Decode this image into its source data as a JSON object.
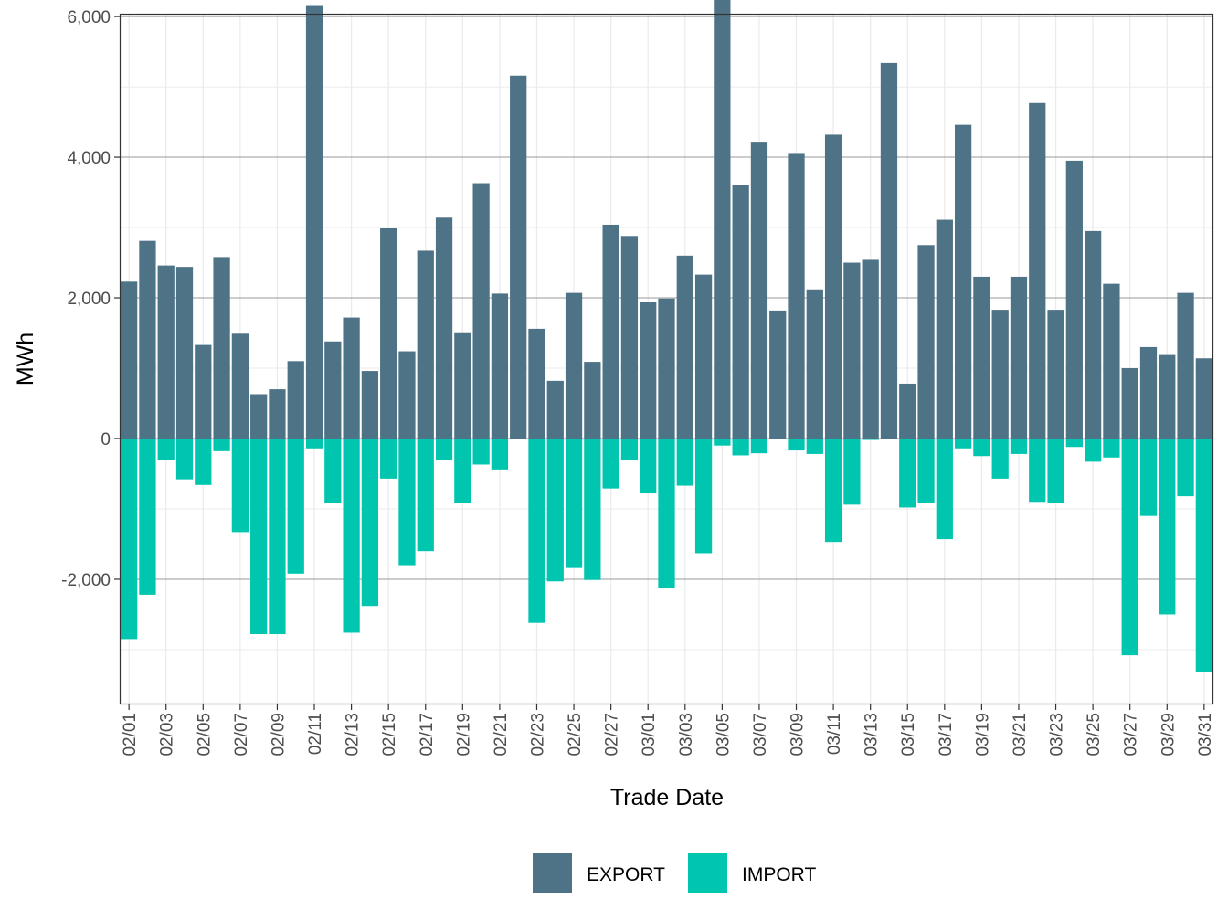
{
  "chart_data": {
    "type": "bar",
    "stacked": "diverging",
    "title": "",
    "xlabel": "Trade Date",
    "ylabel": "MWh",
    "ylim": [
      -3780,
      6040
    ],
    "y_ticks": [
      -2000,
      0,
      2000,
      4000,
      6000
    ],
    "y_tick_labels": [
      "-2,000",
      "0",
      "2,000",
      "4,000",
      "6,000"
    ],
    "grid": true,
    "legend_position": "bottom",
    "categories": [
      "02/01",
      "02/02",
      "02/03",
      "02/04",
      "02/05",
      "02/06",
      "02/07",
      "02/08",
      "02/09",
      "02/10",
      "02/11",
      "02/12",
      "02/13",
      "02/14",
      "02/15",
      "02/16",
      "02/17",
      "02/18",
      "02/19",
      "02/20",
      "02/21",
      "02/22",
      "02/23",
      "02/24",
      "02/25",
      "02/26",
      "02/27",
      "02/28",
      "03/01",
      "03/02",
      "03/03",
      "03/04",
      "03/05",
      "03/06",
      "03/07",
      "03/08",
      "03/09",
      "03/10",
      "03/11",
      "03/12",
      "03/13",
      "03/14",
      "03/15",
      "03/16",
      "03/17",
      "03/18",
      "03/19",
      "03/20",
      "03/21",
      "03/22",
      "03/23",
      "03/24",
      "03/25",
      "03/26",
      "03/27",
      "03/28",
      "03/29",
      "03/30",
      "03/31"
    ],
    "x_tick_labels": [
      "02/01",
      "02/03",
      "02/05",
      "02/07",
      "02/09",
      "02/11",
      "02/13",
      "02/15",
      "02/17",
      "02/19",
      "02/21",
      "02/23",
      "02/25",
      "02/27",
      "03/01",
      "03/03",
      "03/05",
      "03/07",
      "03/09",
      "03/11",
      "03/13",
      "03/15",
      "03/17",
      "03/19",
      "03/21",
      "03/23",
      "03/25",
      "03/27",
      "03/29",
      "03/31"
    ],
    "series": [
      {
        "name": "EXPORT",
        "color": "#4f7386",
        "values": [
          2230,
          2810,
          2460,
          2440,
          1330,
          2580,
          1490,
          630,
          700,
          1100,
          6150,
          1380,
          1720,
          960,
          3000,
          1240,
          2670,
          3140,
          1510,
          3630,
          2060,
          5160,
          1560,
          820,
          2070,
          1090,
          3040,
          2880,
          1940,
          1990,
          2600,
          2330,
          6340,
          3600,
          4220,
          1820,
          4060,
          2120,
          4320,
          2500,
          2540,
          5340,
          780,
          2750,
          3110,
          4460,
          2300,
          1830,
          2300,
          4770,
          1830,
          3950,
          2950,
          2200,
          1000,
          1300,
          1200,
          2070,
          1140
        ]
      },
      {
        "name": "IMPORT",
        "color": "#00c6b0",
        "values": [
          -2850,
          -2220,
          -300,
          -580,
          -660,
          -180,
          -1330,
          -2780,
          -2780,
          -1920,
          -140,
          -920,
          -2760,
          -2380,
          -570,
          -1800,
          -1600,
          -300,
          -920,
          -370,
          -440,
          0,
          -2620,
          -2030,
          -1840,
          -2010,
          -710,
          -300,
          -780,
          -2120,
          -670,
          -1630,
          -100,
          -240,
          -210,
          0,
          -170,
          -220,
          -1470,
          -940,
          -20,
          0,
          -980,
          -920,
          -1430,
          -140,
          -250,
          -570,
          -220,
          -900,
          -920,
          -120,
          -330,
          -270,
          -3080,
          -1100,
          -2500,
          -820,
          -3320
        ]
      }
    ]
  }
}
